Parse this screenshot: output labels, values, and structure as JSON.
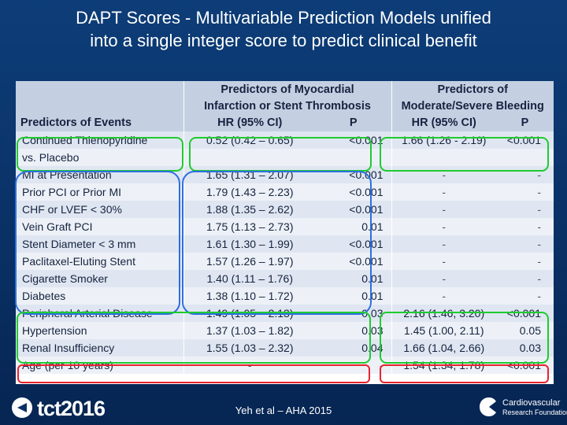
{
  "slide": {
    "title_line1": "DAPT Scores - Multivariable Prediction Models unified",
    "title_line2": "into a single integer score to predict clinical benefit"
  },
  "table": {
    "group_headers": {
      "mi_line1": "Predictors of Myocardial",
      "mi_line2": "Infarction or Stent Thrombosis",
      "bleed_line1": "Predictors of",
      "bleed_line2": "Moderate/Severe Bleeding"
    },
    "column_headers": {
      "predictors": "Predictors of Events",
      "mi_hr": "HR (95% CI)",
      "mi_p": "P",
      "bleed_hr": "HR (95% CI)",
      "bleed_p": "P"
    },
    "rows": [
      {
        "predictor": "Continued Thienopyridine",
        "mi_hr": "0.52 (0.42 – 0.65)",
        "mi_p": "<0.001",
        "bleed_hr": "1.66 (1.26 - 2.19)",
        "bleed_p": "<0.001"
      },
      {
        "predictor": "vs. Placebo",
        "mi_hr": "",
        "mi_p": "",
        "bleed_hr": "",
        "bleed_p": ""
      },
      {
        "predictor": "MI at Presentation",
        "mi_hr": "1.65 (1.31 – 2.07)",
        "mi_p": "<0.001",
        "bleed_hr": "-",
        "bleed_p": "-"
      },
      {
        "predictor": "Prior PCI or Prior MI",
        "mi_hr": "1.79 (1.43 – 2.23)",
        "mi_p": "<0.001",
        "bleed_hr": "-",
        "bleed_p": "-"
      },
      {
        "predictor": "CHF or LVEF < 30%",
        "mi_hr": "1.88 (1.35 – 2.62)",
        "mi_p": "<0.001",
        "bleed_hr": "-",
        "bleed_p": "-"
      },
      {
        "predictor": "Vein Graft PCI",
        "mi_hr": "1.75 (1.13 – 2.73)",
        "mi_p": "0.01",
        "bleed_hr": "-",
        "bleed_p": "-"
      },
      {
        "predictor": "Stent Diameter < 3 mm",
        "mi_hr": "1.61 (1.30 – 1.99)",
        "mi_p": "<0.001",
        "bleed_hr": "-",
        "bleed_p": "-"
      },
      {
        "predictor": "Paclitaxel-Eluting Stent",
        "mi_hr": "1.57 (1.26 – 1.97)",
        "mi_p": "<0.001",
        "bleed_hr": "-",
        "bleed_p": "-"
      },
      {
        "predictor": "Cigarette Smoker",
        "mi_hr": "1.40 (1.11 – 1.76)",
        "mi_p": "0.01",
        "bleed_hr": "-",
        "bleed_p": "-"
      },
      {
        "predictor": "Diabetes",
        "mi_hr": "1.38 (1.10 – 1.72)",
        "mi_p": "0.01",
        "bleed_hr": "-",
        "bleed_p": "-"
      },
      {
        "predictor": "Peripheral Arterial Disease",
        "mi_hr": "1.49 (1.05 – 2.13)",
        "mi_p": "0.03",
        "bleed_hr": "2.16 (1.46, 3.20)",
        "bleed_p": "<0.001"
      },
      {
        "predictor": "Hypertension",
        "mi_hr": "1.37 (1.03 – 1.82)",
        "mi_p": "0.03",
        "bleed_hr": "1.45 (1.00, 2.11)",
        "bleed_p": "0.05"
      },
      {
        "predictor": "Renal Insufficiency",
        "mi_hr": "1.55 (1.03 – 2.32)",
        "mi_p": "0.04",
        "bleed_hr": "1.66 (1.04, 2.66)",
        "bleed_p": "0.03"
      },
      {
        "predictor": "Age (per 10 years)",
        "mi_hr": "-",
        "mi_p": "-",
        "bleed_hr": "1.54 (1.34, 1.78)",
        "bleed_p": "<0.001"
      }
    ]
  },
  "footer": {
    "conference_logo": "tct2016",
    "citation": "Yeh et al – AHA 2015",
    "crf_line1": "Cardiovascular",
    "crf_line2": "Research Foundation"
  },
  "colors": {
    "background": "#0a3166",
    "header_fill": "#c4d0e2",
    "highlight_green": "#1fcb2e",
    "highlight_blue": "#2d6fe0",
    "highlight_red": "#e8232f"
  },
  "icons": [
    "tct-logo-icon",
    "crf-logo-icon"
  ]
}
